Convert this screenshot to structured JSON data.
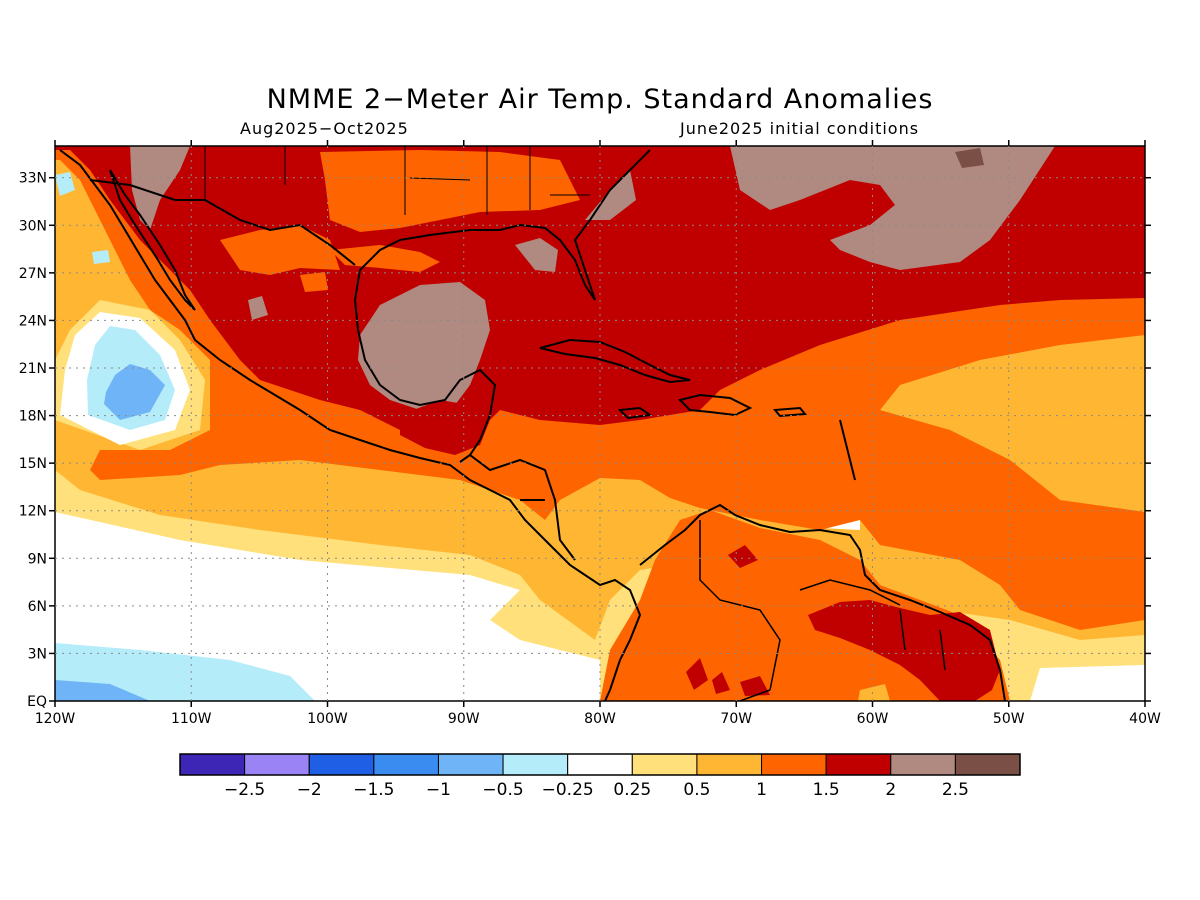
{
  "title": "NMME 2−Meter Air Temp. Standard Anomalies",
  "subtitle_left": "Aug2025−Oct2025",
  "subtitle_right": "June2025 initial conditions",
  "map": {
    "lon_range": [
      -120,
      -40
    ],
    "lat_range": [
      0,
      35
    ],
    "lon_ticks": [
      "120W",
      "110W",
      "100W",
      "90W",
      "80W",
      "70W",
      "60W",
      "50W",
      "40W"
    ],
    "lat_ticks": [
      "EQ",
      "3N",
      "6N",
      "9N",
      "12N",
      "15N",
      "18N",
      "21N",
      "24N",
      "27N",
      "30N",
      "33N"
    ],
    "grid": "dotted"
  },
  "colorbar": {
    "colors": [
      "#3d25b5",
      "#9a84f5",
      "#1f5fe6",
      "#3a8cf0",
      "#6eb4f6",
      "#b4ecfa",
      "#ffffff",
      "#ffe07a",
      "#ffb733",
      "#fe6400",
      "#c00000",
      "#b08a80",
      "#7a4f46"
    ],
    "labels": [
      "−2.5",
      "−2",
      "−1.5",
      "−1",
      "−0.5",
      "−0.25",
      "0.25",
      "0.5",
      "1",
      "1.5",
      "2",
      "2.5"
    ]
  }
}
